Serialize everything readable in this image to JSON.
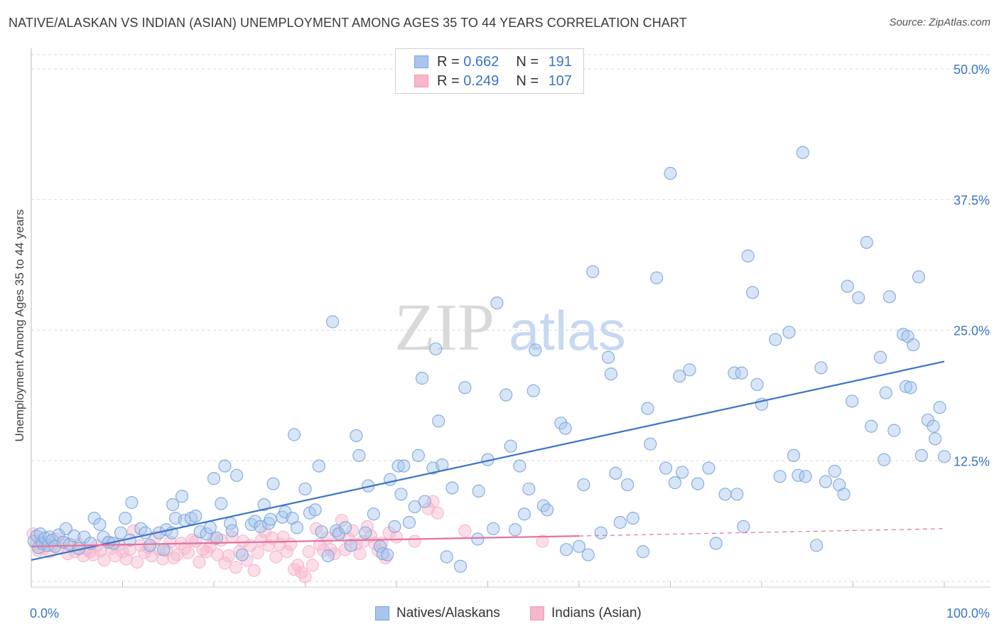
{
  "header": {
    "title": "NATIVE/ALASKAN VS INDIAN (ASIAN) UNEMPLOYMENT AMONG AGES 35 TO 44 YEARS CORRELATION CHART",
    "source": "Source: ZipAtlas.com"
  },
  "watermark": {
    "zip": "ZIP",
    "atlas": "atlas"
  },
  "legend": {
    "r_label": "R =",
    "n_label": "N =",
    "rows": [
      {
        "r": "0.662",
        "n": "191",
        "color": "#7aa7e0"
      },
      {
        "r": "0.249",
        "n": "107",
        "color": "#f29bb8"
      }
    ]
  },
  "bottom_legend": [
    {
      "label": "Natives/Alaskans",
      "color": "#7aa7e0"
    },
    {
      "label": "Indians (Asian)",
      "color": "#f29bb8"
    }
  ],
  "colors": {
    "blue": "#3b74c7",
    "blue_fill": "#a9c5ec",
    "pink": "#e3729b",
    "pink_fill": "#f6b6cb",
    "grid": "#d8d8d8"
  },
  "chart_data": {
    "type": "scatter",
    "title": "NATIVE/ALASKAN VS INDIAN (ASIAN) UNEMPLOYMENT AMONG AGES 35 TO 44 YEARS CORRELATION CHART",
    "xlabel": "",
    "ylabel": "Unemployment Among Ages 35 to 44 years",
    "xlim": [
      0,
      100
    ],
    "ylim": [
      0,
      52
    ],
    "x_tick_labels": [
      "0.0%",
      "100.0%"
    ],
    "y_ticks": [
      12.5,
      25.0,
      37.5,
      50.0
    ],
    "y_tick_labels": [
      "12.5%",
      "25.0%",
      "37.5%",
      "50.0%"
    ],
    "grid": true,
    "legend_position": "top-center",
    "series": [
      {
        "name": "Natives/Alaskans",
        "R": 0.662,
        "N": 191,
        "trend": {
          "x": [
            0,
            100
          ],
          "y": [
            3.0,
            22.0
          ]
        },
        "points": [
          [
            0.3,
            4.8
          ],
          [
            0.6,
            5.3
          ],
          [
            0.8,
            4.2
          ],
          [
            1.0,
            5.5
          ],
          [
            1.2,
            4.6
          ],
          [
            1.5,
            5.1
          ],
          [
            1.8,
            4.4
          ],
          [
            2.0,
            5.2
          ],
          [
            2.3,
            4.9
          ],
          [
            2.6,
            4.3
          ],
          [
            3.0,
            5.4
          ],
          [
            3.5,
            4.7
          ],
          [
            3.8,
            6.0
          ],
          [
            4.2,
            4.5
          ],
          [
            4.7,
            5.3
          ],
          [
            5.2,
            4.1
          ],
          [
            5.8,
            5.2
          ],
          [
            6.5,
            4.6
          ],
          [
            6.9,
            7.0
          ],
          [
            7.5,
            6.4
          ],
          [
            7.9,
            5.2
          ],
          [
            8.5,
            4.7
          ],
          [
            9.0,
            4.6
          ],
          [
            9.8,
            5.6
          ],
          [
            10.3,
            7.0
          ],
          [
            10.8,
            4.9
          ],
          [
            11.0,
            8.5
          ],
          [
            12.0,
            6.0
          ],
          [
            12.5,
            5.6
          ],
          [
            13.0,
            4.4
          ],
          [
            14.0,
            5.6
          ],
          [
            14.5,
            4.0
          ],
          [
            14.8,
            5.9
          ],
          [
            15.4,
            5.6
          ],
          [
            15.5,
            8.3
          ],
          [
            15.8,
            7.0
          ],
          [
            16.5,
            9.1
          ],
          [
            16.8,
            6.8
          ],
          [
            17.5,
            7.0
          ],
          [
            18.0,
            7.2
          ],
          [
            18.5,
            5.7
          ],
          [
            19.2,
            5.5
          ],
          [
            19.6,
            6.1
          ],
          [
            20.0,
            10.8
          ],
          [
            20.3,
            5.1
          ],
          [
            20.8,
            8.4
          ],
          [
            21.2,
            12.0
          ],
          [
            21.8,
            6.5
          ],
          [
            22.0,
            5.8
          ],
          [
            22.5,
            11.1
          ],
          [
            23.1,
            3.5
          ],
          [
            24.1,
            6.4
          ],
          [
            24.5,
            6.7
          ],
          [
            25.1,
            6.2
          ],
          [
            25.5,
            8.3
          ],
          [
            26.0,
            6.5
          ],
          [
            26.2,
            6.9
          ],
          [
            26.5,
            10.3
          ],
          [
            27.5,
            7.1
          ],
          [
            27.8,
            7.6
          ],
          [
            28.6,
            7.0
          ],
          [
            28.8,
            15.0
          ],
          [
            29.1,
            6.1
          ],
          [
            30.0,
            9.8
          ],
          [
            30.5,
            7.5
          ],
          [
            31.1,
            7.8
          ],
          [
            31.5,
            12.0
          ],
          [
            31.8,
            5.7
          ],
          [
            32.5,
            3.4
          ],
          [
            33.0,
            25.8
          ],
          [
            33.4,
            5.8
          ],
          [
            33.7,
            5.5
          ],
          [
            34.4,
            6.1
          ],
          [
            35.0,
            4.4
          ],
          [
            35.6,
            14.9
          ],
          [
            35.9,
            13.0
          ],
          [
            36.6,
            5.6
          ],
          [
            36.9,
            10.1
          ],
          [
            37.5,
            7.4
          ],
          [
            38.2,
            4.3
          ],
          [
            38.5,
            3.6
          ],
          [
            39.0,
            3.5
          ],
          [
            39.3,
            10.7
          ],
          [
            39.8,
            6.2
          ],
          [
            40.2,
            12.0
          ],
          [
            40.5,
            9.3
          ],
          [
            40.8,
            12.0
          ],
          [
            41.4,
            6.6
          ],
          [
            42.0,
            8.1
          ],
          [
            42.4,
            13.0
          ],
          [
            42.8,
            20.4
          ],
          [
            43.1,
            8.6
          ],
          [
            44.0,
            11.8
          ],
          [
            44.3,
            23.2
          ],
          [
            44.6,
            16.3
          ],
          [
            45.0,
            12.1
          ],
          [
            45.5,
            3.3
          ],
          [
            46.1,
            9.9
          ],
          [
            47.0,
            2.4
          ],
          [
            47.5,
            19.5
          ],
          [
            49.0,
            9.6
          ],
          [
            48.9,
            5.0
          ],
          [
            50.0,
            12.6
          ],
          [
            50.6,
            6.0
          ],
          [
            51.0,
            27.6
          ],
          [
            52.0,
            18.8
          ],
          [
            52.5,
            13.9
          ],
          [
            53.0,
            5.9
          ],
          [
            53.5,
            12.0
          ],
          [
            54.0,
            7.4
          ],
          [
            54.5,
            9.8
          ],
          [
            55.0,
            19.2
          ],
          [
            55.2,
            23.1
          ],
          [
            56.1,
            8.2
          ],
          [
            56.5,
            7.8
          ],
          [
            58.0,
            16.1
          ],
          [
            58.5,
            15.6
          ],
          [
            58.6,
            4.0
          ],
          [
            60.0,
            4.3
          ],
          [
            60.5,
            10.2
          ],
          [
            61.0,
            3.5
          ],
          [
            61.5,
            30.6
          ],
          [
            62.4,
            5.6
          ],
          [
            63.2,
            22.4
          ],
          [
            63.5,
            20.8
          ],
          [
            64.0,
            11.3
          ],
          [
            64.5,
            6.6
          ],
          [
            65.3,
            10.2
          ],
          [
            65.9,
            7.0
          ],
          [
            67.0,
            3.8
          ],
          [
            67.5,
            17.5
          ],
          [
            67.8,
            14.1
          ],
          [
            68.5,
            30.0
          ],
          [
            69.5,
            11.8
          ],
          [
            70.0,
            40.0
          ],
          [
            70.5,
            10.4
          ],
          [
            71.0,
            20.6
          ],
          [
            71.3,
            11.4
          ],
          [
            72.1,
            21.2
          ],
          [
            73.0,
            10.3
          ],
          [
            74.2,
            11.8
          ],
          [
            75.0,
            4.6
          ],
          [
            76.0,
            9.3
          ],
          [
            77.0,
            20.9
          ],
          [
            77.3,
            9.3
          ],
          [
            77.8,
            20.9
          ],
          [
            78.0,
            6.2
          ],
          [
            78.5,
            32.1
          ],
          [
            79.0,
            28.6
          ],
          [
            79.5,
            19.8
          ],
          [
            80.0,
            17.9
          ],
          [
            81.5,
            24.1
          ],
          [
            82.0,
            11.0
          ],
          [
            83.0,
            24.8
          ],
          [
            83.5,
            13.0
          ],
          [
            84.0,
            11.1
          ],
          [
            84.5,
            42.0
          ],
          [
            84.8,
            11.0
          ],
          [
            86.0,
            4.4
          ],
          [
            86.5,
            21.4
          ],
          [
            87.0,
            10.5
          ],
          [
            88.0,
            11.5
          ],
          [
            88.5,
            10.2
          ],
          [
            89.0,
            9.3
          ],
          [
            89.4,
            29.2
          ],
          [
            89.9,
            18.2
          ],
          [
            90.6,
            28.1
          ],
          [
            91.5,
            33.4
          ],
          [
            92.0,
            15.8
          ],
          [
            93.0,
            22.4
          ],
          [
            93.4,
            12.6
          ],
          [
            93.6,
            19.0
          ],
          [
            94.0,
            28.2
          ],
          [
            94.5,
            15.4
          ],
          [
            95.5,
            24.6
          ],
          [
            95.8,
            19.6
          ],
          [
            96.0,
            24.4
          ],
          [
            96.3,
            19.5
          ],
          [
            96.6,
            23.6
          ],
          [
            97.2,
            30.1
          ],
          [
            97.5,
            13.0
          ],
          [
            98.2,
            16.4
          ],
          [
            98.8,
            15.8
          ],
          [
            99.0,
            14.6
          ],
          [
            99.5,
            17.6
          ],
          [
            100.0,
            12.9
          ]
        ]
      },
      {
        "name": "Indians (Asian)",
        "R": 0.249,
        "N": 107,
        "trend": {
          "x": [
            0,
            60
          ],
          "y": [
            4.3,
            5.3
          ]
        },
        "trend_extension": {
          "x": [
            60,
            100
          ],
          "y": [
            5.3,
            6.0
          ]
        },
        "points": [
          [
            0.2,
            5.5
          ],
          [
            0.5,
            4.5
          ],
          [
            0.8,
            3.9
          ],
          [
            1.0,
            4.8
          ],
          [
            1.3,
            4.1
          ],
          [
            1.6,
            4.6
          ],
          [
            2.0,
            3.8
          ],
          [
            2.3,
            4.4
          ],
          [
            2.7,
            5.0
          ],
          [
            3.0,
            4.2
          ],
          [
            3.5,
            4.7
          ],
          [
            4.0,
            3.6
          ],
          [
            4.4,
            4.3
          ],
          [
            4.8,
            3.8
          ],
          [
            5.2,
            4.5
          ],
          [
            5.7,
            3.4
          ],
          [
            6.1,
            4.0
          ],
          [
            6.4,
            3.8
          ],
          [
            6.8,
            3.5
          ],
          [
            7.2,
            4.4
          ],
          [
            7.6,
            3.9
          ],
          [
            8.0,
            3.0
          ],
          [
            8.4,
            4.7
          ],
          [
            8.8,
            4.1
          ],
          [
            9.2,
            3.4
          ],
          [
            9.6,
            4.5
          ],
          [
            10.0,
            3.8
          ],
          [
            10.4,
            3.1
          ],
          [
            10.8,
            4.0
          ],
          [
            11.2,
            5.8
          ],
          [
            11.6,
            2.8
          ],
          [
            12.0,
            4.4
          ],
          [
            12.4,
            3.7
          ],
          [
            12.8,
            4.2
          ],
          [
            13.2,
            3.4
          ],
          [
            13.6,
            5.2
          ],
          [
            14.0,
            4.0
          ],
          [
            14.4,
            3.1
          ],
          [
            14.8,
            3.9
          ],
          [
            15.2,
            4.7
          ],
          [
            15.6,
            3.2
          ],
          [
            16.0,
            3.5
          ],
          [
            16.4,
            4.6
          ],
          [
            16.8,
            4.1
          ],
          [
            17.2,
            3.7
          ],
          [
            17.6,
            4.9
          ],
          [
            18.0,
            4.8
          ],
          [
            18.4,
            2.8
          ],
          [
            18.8,
            4.0
          ],
          [
            19.2,
            3.8
          ],
          [
            19.6,
            4.3
          ],
          [
            20.0,
            5.0
          ],
          [
            20.4,
            3.5
          ],
          [
            20.8,
            4.9
          ],
          [
            21.2,
            2.7
          ],
          [
            21.6,
            3.4
          ],
          [
            22.0,
            5.2
          ],
          [
            22.4,
            2.3
          ],
          [
            22.8,
            3.8
          ],
          [
            23.2,
            4.8
          ],
          [
            23.6,
            3.0
          ],
          [
            24.0,
            4.4
          ],
          [
            24.4,
            2.0
          ],
          [
            24.8,
            3.7
          ],
          [
            25.2,
            4.9
          ],
          [
            25.6,
            5.7
          ],
          [
            26.0,
            4.4
          ],
          [
            26.4,
            5.1
          ],
          [
            26.8,
            3.3
          ],
          [
            27.2,
            4.5
          ],
          [
            27.6,
            5.2
          ],
          [
            28.0,
            3.8
          ],
          [
            28.4,
            4.5
          ],
          [
            28.8,
            2.1
          ],
          [
            29.2,
            2.5
          ],
          [
            29.6,
            1.8
          ],
          [
            30.0,
            1.4
          ],
          [
            30.4,
            3.8
          ],
          [
            30.8,
            2.5
          ],
          [
            31.2,
            6.0
          ],
          [
            31.6,
            4.5
          ],
          [
            32.0,
            3.9
          ],
          [
            32.4,
            5.1
          ],
          [
            32.8,
            4.0
          ],
          [
            33.2,
            3.6
          ],
          [
            33.6,
            5.6
          ],
          [
            34.0,
            6.8
          ],
          [
            34.4,
            4.0
          ],
          [
            34.8,
            5.0
          ],
          [
            35.2,
            5.8
          ],
          [
            35.6,
            4.5
          ],
          [
            36.0,
            3.6
          ],
          [
            36.4,
            4.8
          ],
          [
            36.8,
            6.2
          ],
          [
            37.2,
            5.3
          ],
          [
            37.6,
            4.6
          ],
          [
            38.0,
            3.9
          ],
          [
            38.4,
            4.6
          ],
          [
            38.8,
            3.2
          ],
          [
            39.2,
            5.6
          ],
          [
            40.0,
            5.2
          ],
          [
            42.0,
            4.8
          ],
          [
            43.5,
            7.9
          ],
          [
            44.0,
            8.6
          ],
          [
            44.5,
            7.5
          ],
          [
            47.5,
            5.8
          ],
          [
            56.0,
            4.8
          ]
        ]
      }
    ]
  }
}
